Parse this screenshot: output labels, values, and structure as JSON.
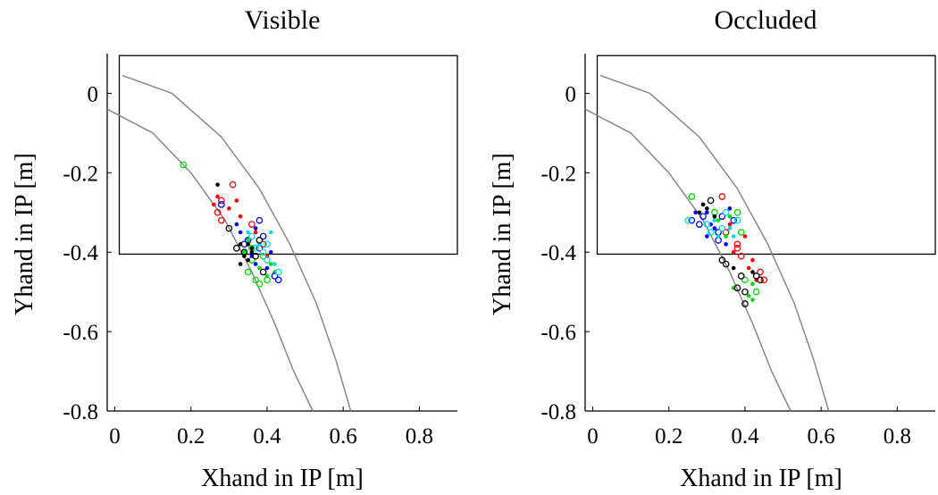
{
  "chart_data": [
    {
      "type": "scatter",
      "title": "Visible",
      "xlabel": "Xhand in IP [m]",
      "ylabel": "Yhand in IP [m]",
      "xlim": [
        -0.02,
        0.9
      ],
      "ylim": [
        -0.8,
        0.1
      ],
      "xticks": [
        "0",
        "0.2",
        "0.4",
        "0.6",
        "0.8"
      ],
      "yticks": [
        "0",
        "-0.2",
        "-0.4",
        "-0.6",
        "-0.8"
      ],
      "grid": false,
      "rectangle": {
        "x": [
          0.0,
          0.9
        ],
        "y": [
          -0.405,
          0.095
        ]
      },
      "curves": [
        {
          "x": [
            0.02,
            0.15,
            0.28,
            0.38,
            0.46,
            0.53,
            0.58,
            0.62
          ],
          "y": [
            0.045,
            0.0,
            -0.11,
            -0.24,
            -0.38,
            -0.53,
            -0.67,
            -0.8
          ]
        },
        {
          "x": [
            -0.02,
            0.1,
            0.2,
            0.29,
            0.36,
            0.42,
            0.47,
            0.52
          ],
          "y": [
            -0.04,
            -0.1,
            -0.2,
            -0.32,
            -0.45,
            -0.58,
            -0.7,
            -0.8
          ]
        }
      ],
      "series": [
        {
          "name": "",
          "color": "#ff0000",
          "points": [
            [
              0.27,
              -0.26
            ],
            [
              0.28,
              -0.27
            ],
            [
              0.31,
              -0.23
            ],
            [
              0.26,
              -0.28
            ],
            [
              0.3,
              -0.29
            ],
            [
              0.27,
              -0.3
            ],
            [
              0.32,
              -0.27
            ],
            [
              0.36,
              -0.33
            ],
            [
              0.37,
              -0.35
            ],
            [
              0.39,
              -0.38
            ],
            [
              0.33,
              -0.31
            ],
            [
              0.28,
              -0.32
            ],
            [
              0.4,
              -0.41
            ]
          ],
          "filled": [
            true,
            false,
            false,
            true,
            true,
            false,
            true,
            false,
            true,
            false,
            true,
            false,
            true
          ]
        },
        {
          "name": "",
          "color": "#00dd00",
          "points": [
            [
              0.18,
              -0.18
            ],
            [
              0.34,
              -0.4
            ],
            [
              0.36,
              -0.42
            ],
            [
              0.38,
              -0.44
            ],
            [
              0.35,
              -0.45
            ],
            [
              0.4,
              -0.46
            ],
            [
              0.37,
              -0.47
            ],
            [
              0.33,
              -0.43
            ],
            [
              0.39,
              -0.41
            ],
            [
              0.41,
              -0.43
            ],
            [
              0.36,
              -0.39
            ],
            [
              0.42,
              -0.45
            ],
            [
              0.38,
              -0.48
            ],
            [
              0.35,
              -0.37
            ],
            [
              0.4,
              -0.47
            ]
          ],
          "filled": [
            false,
            true,
            false,
            true,
            false,
            true,
            false,
            true,
            false,
            true,
            false,
            true,
            false,
            true,
            false
          ]
        },
        {
          "name": "",
          "color": "#0000ff",
          "points": [
            [
              0.33,
              -0.35
            ],
            [
              0.35,
              -0.37
            ],
            [
              0.37,
              -0.34
            ],
            [
              0.38,
              -0.39
            ],
            [
              0.36,
              -0.41
            ],
            [
              0.39,
              -0.36
            ],
            [
              0.41,
              -0.4
            ],
            [
              0.34,
              -0.38
            ],
            [
              0.4,
              -0.44
            ],
            [
              0.42,
              -0.46
            ],
            [
              0.37,
              -0.43
            ],
            [
              0.43,
              -0.47
            ],
            [
              0.32,
              -0.33
            ],
            [
              0.38,
              -0.32
            ],
            [
              0.28,
              -0.28
            ]
          ],
          "filled": [
            true,
            false,
            true,
            false,
            true,
            false,
            true,
            false,
            true,
            false,
            true,
            false,
            true,
            false,
            false
          ]
        },
        {
          "name": "",
          "color": "#00dddd",
          "points": [
            [
              0.36,
              -0.36
            ],
            [
              0.38,
              -0.38
            ],
            [
              0.4,
              -0.38
            ],
            [
              0.41,
              -0.35
            ],
            [
              0.39,
              -0.4
            ],
            [
              0.42,
              -0.43
            ],
            [
              0.37,
              -0.39
            ],
            [
              0.43,
              -0.45
            ],
            [
              0.35,
              -0.35
            ],
            [
              0.4,
              -0.42
            ]
          ],
          "filled": [
            false,
            true,
            false,
            true,
            false,
            true,
            false,
            false,
            true,
            false
          ]
        },
        {
          "name": "",
          "color": "#000000",
          "points": [
            [
              0.27,
              -0.23
            ],
            [
              0.3,
              -0.34
            ],
            [
              0.33,
              -0.38
            ],
            [
              0.34,
              -0.4
            ],
            [
              0.35,
              -0.42
            ],
            [
              0.36,
              -0.39
            ],
            [
              0.37,
              -0.41
            ],
            [
              0.33,
              -0.43
            ],
            [
              0.36,
              -0.4
            ],
            [
              0.38,
              -0.37
            ],
            [
              0.34,
              -0.41
            ],
            [
              0.39,
              -0.45
            ],
            [
              0.32,
              -0.39
            ],
            [
              0.35,
              -0.38
            ]
          ],
          "filled": [
            true,
            false,
            true,
            false,
            true,
            true,
            false,
            true,
            true,
            false,
            true,
            false,
            false,
            true
          ]
        }
      ]
    },
    {
      "type": "scatter",
      "title": "Occluded",
      "xlabel": "Xhand in IP [m]",
      "ylabel": "Yhand in IP [m]",
      "xlim": [
        -0.02,
        0.9
      ],
      "ylim": [
        -0.8,
        0.1
      ],
      "xticks": [
        "0",
        "0.2",
        "0.4",
        "0.6",
        "0.8"
      ],
      "yticks": [
        "0",
        "-0.2",
        "-0.4",
        "-0.6",
        "-0.8"
      ],
      "grid": false,
      "rectangle": {
        "x": [
          0.0,
          0.9
        ],
        "y": [
          -0.405,
          0.095
        ]
      },
      "curves": [
        {
          "x": [
            0.02,
            0.15,
            0.28,
            0.38,
            0.46,
            0.53,
            0.58,
            0.62
          ],
          "y": [
            0.045,
            0.0,
            -0.11,
            -0.24,
            -0.38,
            -0.53,
            -0.67,
            -0.8
          ]
        },
        {
          "x": [
            -0.02,
            0.1,
            0.2,
            0.29,
            0.36,
            0.42,
            0.47,
            0.52
          ],
          "y": [
            -0.04,
            -0.1,
            -0.2,
            -0.32,
            -0.45,
            -0.58,
            -0.7,
            -0.8
          ]
        }
      ],
      "series": [
        {
          "name": "",
          "color": "#ff0000",
          "points": [
            [
              0.34,
              -0.26
            ],
            [
              0.36,
              -0.33
            ],
            [
              0.38,
              -0.38
            ],
            [
              0.4,
              -0.36
            ],
            [
              0.42,
              -0.42
            ],
            [
              0.44,
              -0.45
            ],
            [
              0.43,
              -0.47
            ],
            [
              0.39,
              -0.41
            ],
            [
              0.37,
              -0.4
            ],
            [
              0.35,
              -0.35
            ],
            [
              0.41,
              -0.44
            ],
            [
              0.38,
              -0.39
            ],
            [
              0.45,
              -0.47
            ]
          ],
          "filled": [
            false,
            true,
            false,
            true,
            true,
            false,
            true,
            false,
            true,
            false,
            true,
            false,
            false
          ]
        },
        {
          "name": "",
          "color": "#00dd00",
          "points": [
            [
              0.26,
              -0.26
            ],
            [
              0.29,
              -0.28
            ],
            [
              0.32,
              -0.3
            ],
            [
              0.36,
              -0.31
            ],
            [
              0.39,
              -0.35
            ],
            [
              0.42,
              -0.48
            ],
            [
              0.43,
              -0.5
            ],
            [
              0.41,
              -0.51
            ],
            [
              0.37,
              -0.49
            ],
            [
              0.4,
              -0.47
            ],
            [
              0.33,
              -0.32
            ],
            [
              0.38,
              -0.3
            ],
            [
              0.35,
              -0.36
            ],
            [
              0.42,
              -0.52
            ]
          ],
          "filled": [
            false,
            true,
            false,
            true,
            false,
            true,
            false,
            true,
            true,
            false,
            true,
            false,
            true,
            true
          ]
        },
        {
          "name": "",
          "color": "#0000ff",
          "points": [
            [
              0.27,
              -0.3
            ],
            [
              0.29,
              -0.31
            ],
            [
              0.31,
              -0.33
            ],
            [
              0.33,
              -0.35
            ],
            [
              0.3,
              -0.36
            ],
            [
              0.34,
              -0.31
            ],
            [
              0.32,
              -0.34
            ],
            [
              0.28,
              -0.33
            ],
            [
              0.35,
              -0.38
            ],
            [
              0.37,
              -0.32
            ],
            [
              0.36,
              -0.29
            ],
            [
              0.33,
              -0.37
            ],
            [
              0.26,
              -0.32
            ],
            [
              0.3,
              -0.3
            ]
          ],
          "filled": [
            true,
            false,
            true,
            false,
            true,
            false,
            true,
            false,
            true,
            false,
            true,
            false,
            false,
            true
          ]
        },
        {
          "name": "",
          "color": "#00dddd",
          "points": [
            [
              0.3,
              -0.33
            ],
            [
              0.32,
              -0.32
            ],
            [
              0.34,
              -0.34
            ],
            [
              0.36,
              -0.34
            ],
            [
              0.38,
              -0.32
            ],
            [
              0.35,
              -0.3
            ],
            [
              0.33,
              -0.36
            ],
            [
              0.31,
              -0.35
            ],
            [
              0.25,
              -0.32
            ],
            [
              0.37,
              -0.36
            ]
          ],
          "filled": [
            false,
            true,
            false,
            true,
            false,
            false,
            true,
            false,
            false,
            true
          ]
        },
        {
          "name": "",
          "color": "#000000",
          "points": [
            [
              0.29,
              -0.28
            ],
            [
              0.3,
              -0.29
            ],
            [
              0.31,
              -0.27
            ],
            [
              0.32,
              -0.31
            ],
            [
              0.34,
              -0.42
            ],
            [
              0.35,
              -0.43
            ],
            [
              0.37,
              -0.44
            ],
            [
              0.39,
              -0.46
            ],
            [
              0.4,
              -0.5
            ],
            [
              0.42,
              -0.45
            ],
            [
              0.43,
              -0.46
            ],
            [
              0.44,
              -0.47
            ],
            [
              0.4,
              -0.53
            ],
            [
              0.38,
              -0.49
            ],
            [
              0.28,
              -0.3
            ]
          ],
          "filled": [
            true,
            true,
            false,
            true,
            false,
            false,
            true,
            false,
            false,
            true,
            false,
            false,
            false,
            false,
            true
          ]
        }
      ]
    }
  ]
}
